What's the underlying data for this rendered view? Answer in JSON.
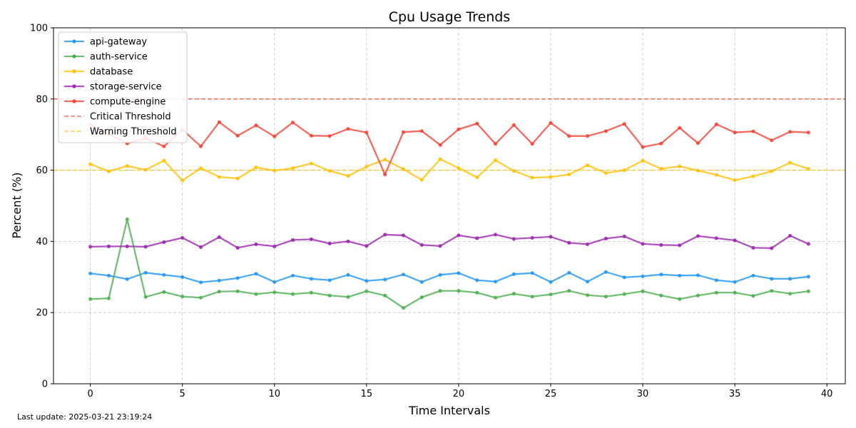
{
  "footer": {
    "last_update": "Last update: 2025-03-21 23:19:24"
  },
  "chart_data": {
    "type": "line",
    "title": "Cpu Usage Trends",
    "xlabel": "Time Intervals",
    "ylabel": "Percent (%)",
    "xlim": [
      -2,
      41
    ],
    "ylim": [
      0,
      100
    ],
    "x_ticks": [
      0,
      5,
      10,
      15,
      20,
      25,
      30,
      35,
      40
    ],
    "y_ticks": [
      0,
      20,
      40,
      60,
      80,
      100
    ],
    "grid": true,
    "legend_position": "top-left",
    "x": [
      0,
      1,
      2,
      3,
      4,
      5,
      6,
      7,
      8,
      9,
      10,
      11,
      12,
      13,
      14,
      15,
      16,
      17,
      18,
      19,
      20,
      21,
      22,
      23,
      24,
      25,
      26,
      27,
      28,
      29,
      30,
      31,
      32,
      33,
      34,
      35,
      36,
      37,
      38,
      39
    ],
    "series": [
      {
        "name": "api-gateway",
        "color": "#2196F3",
        "values": [
          31,
          30.4,
          29.4,
          31.2,
          30.6,
          30,
          28.5,
          29,
          29.7,
          30.9,
          28.6,
          30.4,
          29.5,
          29.1,
          30.6,
          28.9,
          29.3,
          30.7,
          28.6,
          30.6,
          31.1,
          29.1,
          28.7,
          30.8,
          31.1,
          28.6,
          31.2,
          28.7,
          31.4,
          29.9,
          30.2,
          30.7,
          30.4,
          30.5,
          29.1,
          28.6,
          30.4,
          29.5,
          29.5,
          30.1
        ]
      },
      {
        "name": "auth-service",
        "color": "#4CAF50",
        "values": [
          23.8,
          24,
          46.2,
          24.4,
          25.8,
          24.5,
          24.2,
          25.9,
          26,
          25.2,
          25.7,
          25.2,
          25.6,
          24.8,
          24.4,
          26,
          24.8,
          21.3,
          24.3,
          26.1,
          26.1,
          25.6,
          24.2,
          25.3,
          24.5,
          25.1,
          26.1,
          24.9,
          24.5,
          25.2,
          26,
          24.8,
          23.8,
          24.8,
          25.6,
          25.6,
          24.7,
          26.1,
          25.3,
          26
        ]
      },
      {
        "name": "database",
        "color": "#FFC107",
        "values": [
          61.7,
          59.7,
          61.2,
          60.1,
          62.7,
          57.1,
          60.6,
          58.1,
          57.7,
          60.8,
          59.9,
          60.6,
          61.9,
          59.8,
          58.4,
          61,
          63,
          60.3,
          57.3,
          63.1,
          60.6,
          58,
          62.8,
          59.8,
          57.9,
          58.1,
          58.8,
          61.4,
          59.2,
          60,
          62.7,
          60.4,
          61.1,
          59.9,
          58.7,
          57.2,
          58.3,
          59.7,
          62.1,
          60.4
        ]
      },
      {
        "name": "storage-service",
        "color": "#9C27B0",
        "values": [
          38.5,
          38.6,
          38.6,
          38.5,
          39.8,
          41,
          38.4,
          41.2,
          38.2,
          39.2,
          38.6,
          40.4,
          40.6,
          39.4,
          40,
          38.7,
          41.9,
          41.7,
          39,
          38.7,
          41.7,
          40.9,
          41.9,
          40.7,
          41,
          41.3,
          39.6,
          39.2,
          40.8,
          41.4,
          39.3,
          39,
          38.9,
          41.5,
          40.9,
          40.3,
          38.2,
          38.1,
          41.6,
          39.3
        ]
      },
      {
        "name": "compute-engine",
        "color": "#F44336",
        "values": [
          72.8,
          70.2,
          67.5,
          69,
          66.7,
          71.4,
          66.7,
          73.5,
          69.7,
          72.6,
          69.5,
          73.4,
          69.7,
          69.6,
          71.6,
          70.6,
          58.8,
          70.7,
          71,
          67.1,
          71.5,
          73.1,
          67.4,
          72.7,
          67.4,
          73.3,
          69.6,
          69.6,
          71,
          73,
          66.5,
          67.5,
          71.9,
          67.6,
          72.9,
          70.6,
          70.9,
          68.4,
          70.8,
          70.6
        ]
      }
    ],
    "thresholds": [
      {
        "name": "Critical Threshold",
        "value": 80,
        "color": "#F44336"
      },
      {
        "name": "Warning Threshold",
        "value": 60,
        "color": "#FFC107"
      }
    ]
  }
}
